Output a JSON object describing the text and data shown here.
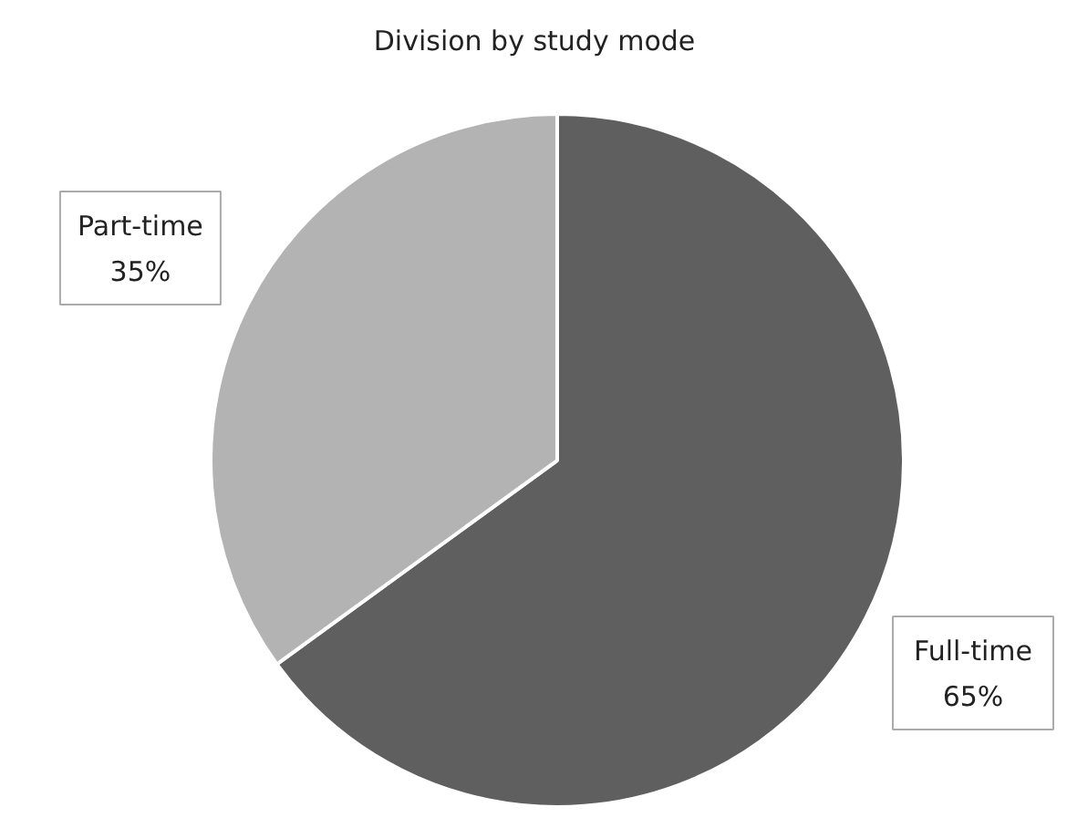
{
  "chart_data": {
    "type": "pie",
    "title": "Division by study mode",
    "categories": [
      "Full-time",
      "Part-time"
    ],
    "values": [
      65,
      35
    ],
    "colors": [
      "#5f5f5f",
      "#b3b3b3"
    ],
    "value_labels": [
      "65%",
      "35%"
    ]
  }
}
